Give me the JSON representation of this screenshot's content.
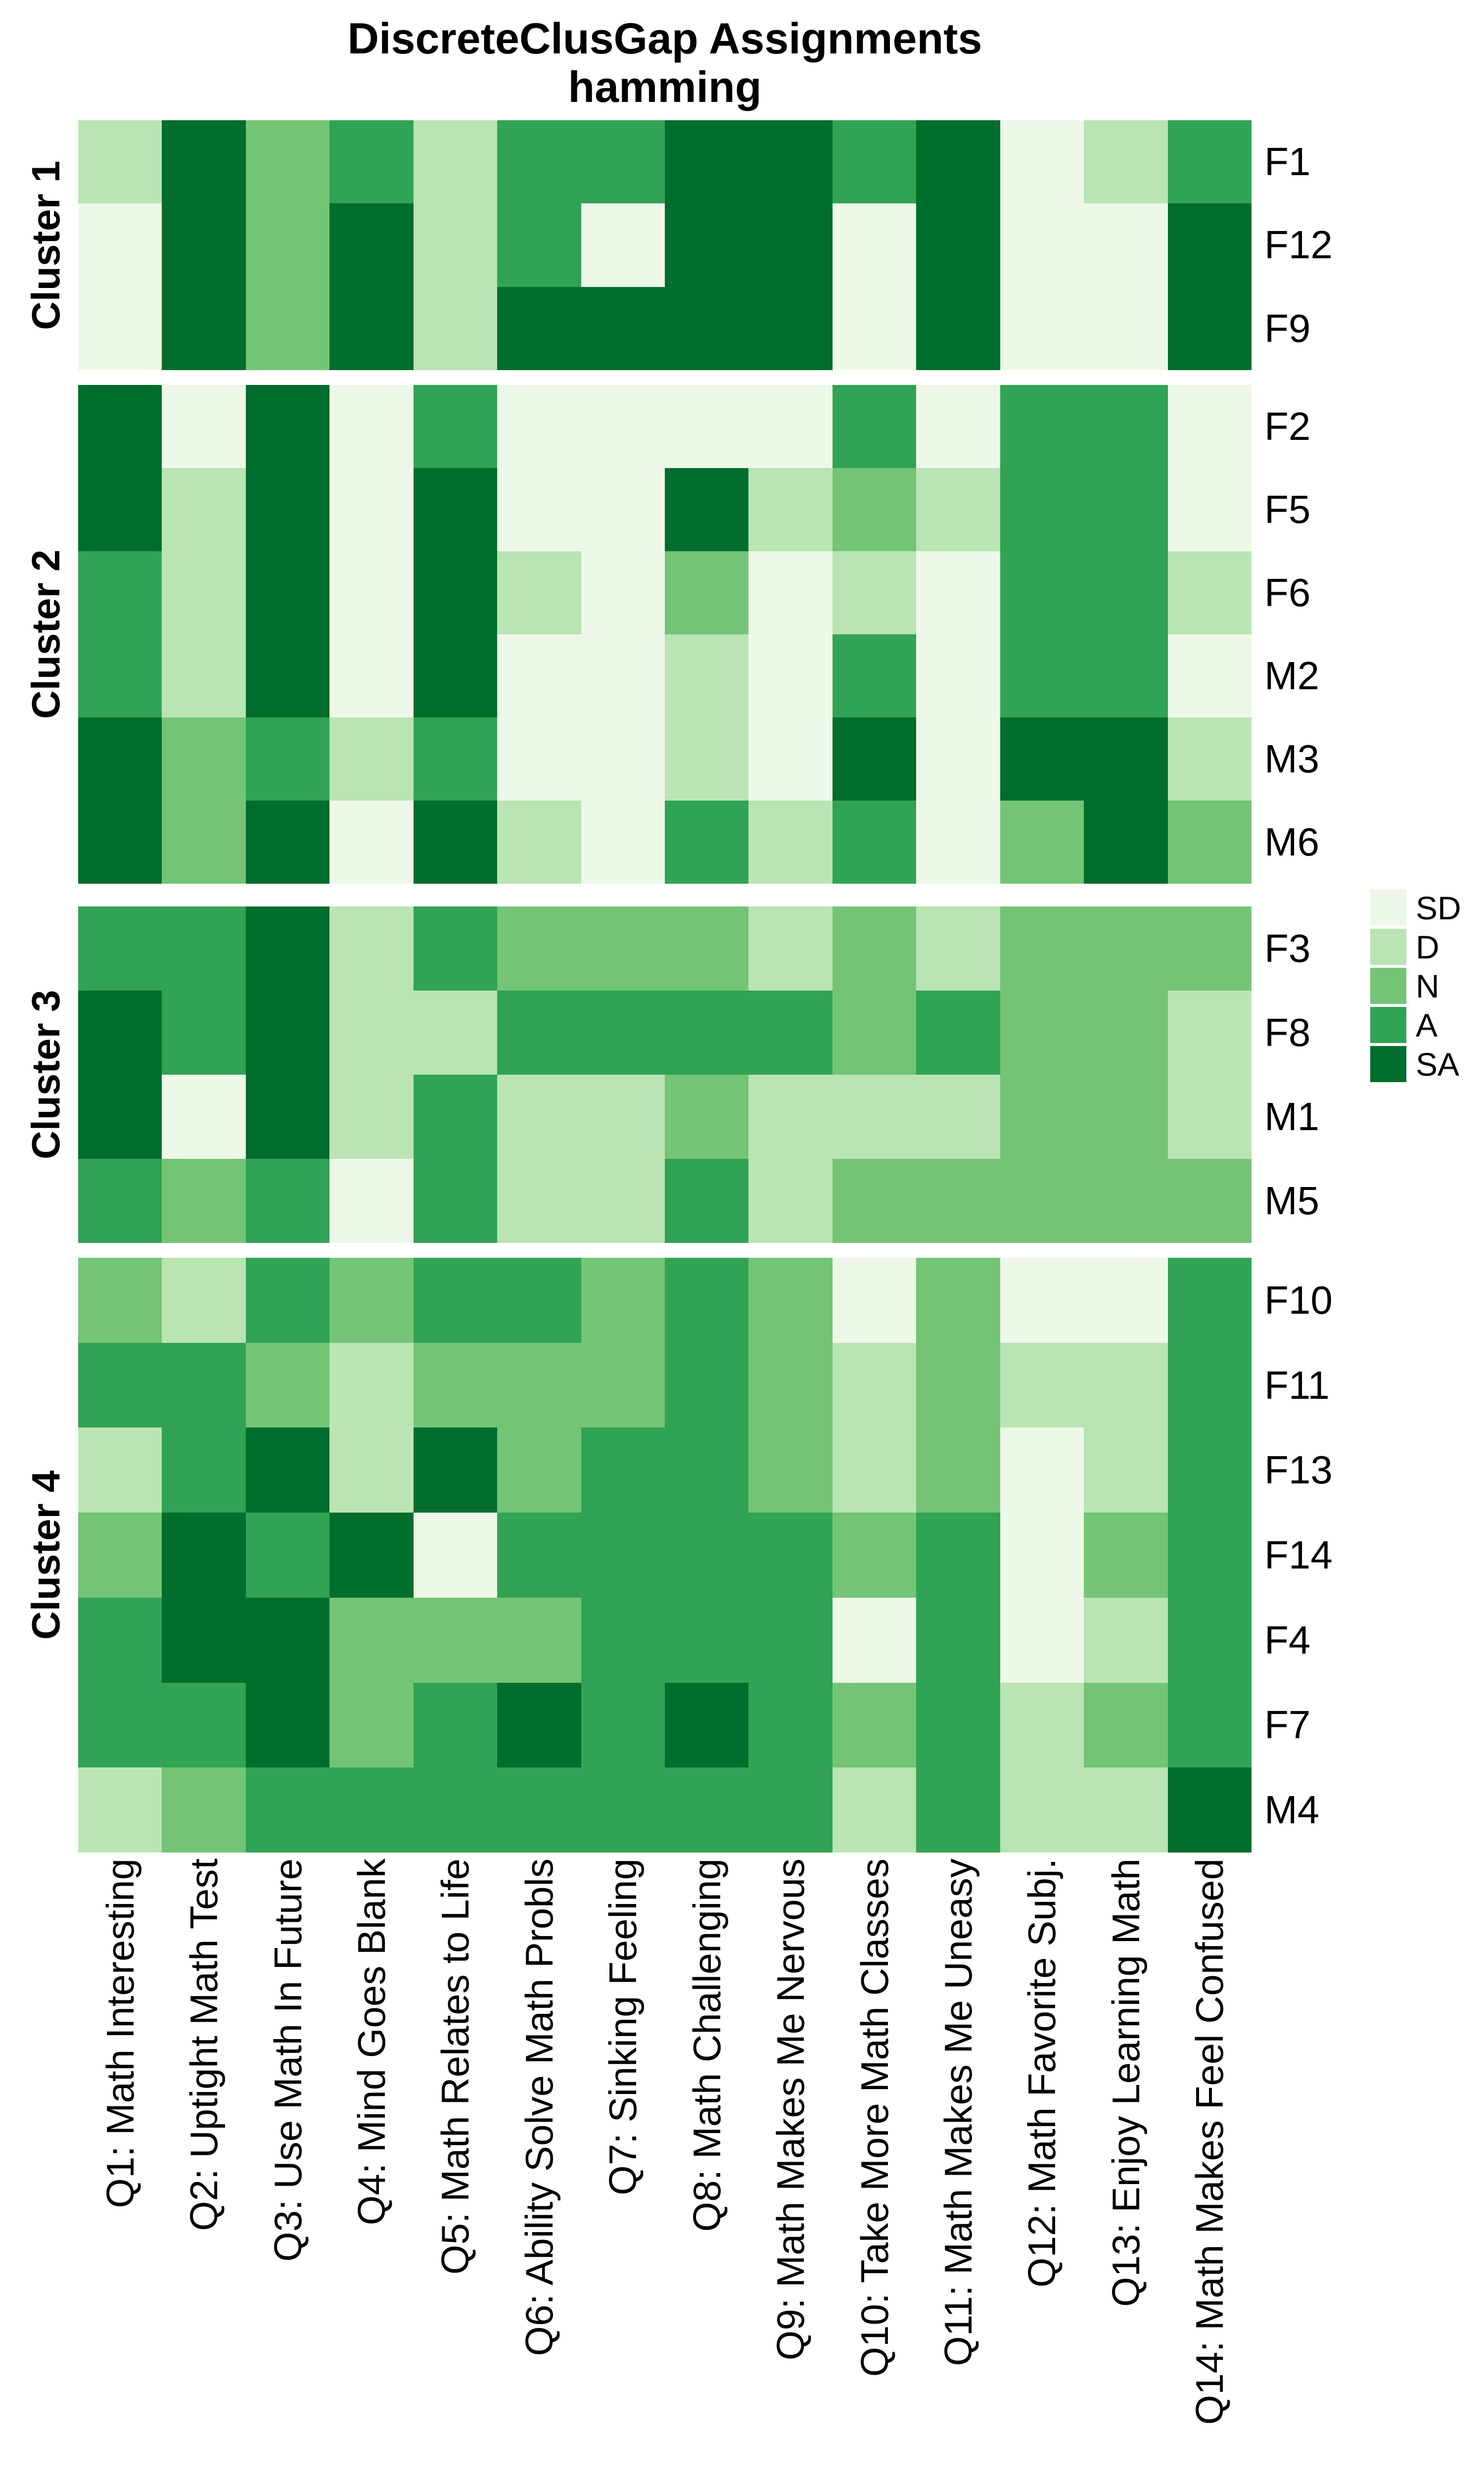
{
  "title": "DiscreteClusGap Assignments",
  "subtitle": "hamming",
  "chart_data": {
    "type": "heatmap",
    "title": "DiscreteClusGap Assignments",
    "subtitle": "hamming",
    "distance_metric": "hamming",
    "value_levels": [
      "SD",
      "D",
      "N",
      "A",
      "SA"
    ],
    "colors": {
      "SD": "#edf8e9",
      "D": "#bae4b3",
      "N": "#74c476",
      "A": "#31a354",
      "SA": "#006d2c"
    },
    "legend": {
      "position": "right",
      "labels": [
        "SD",
        "D",
        "N",
        "A",
        "SA"
      ]
    },
    "columns": [
      "Q1: Math Interesting",
      "Q2: Uptight Math Test",
      "Q3: Use Math In Future",
      "Q4: Mind Goes Blank",
      "Q5: Math Relates to Life",
      "Q6: Ability Solve Math Probls",
      "Q7: Sinking Feeling",
      "Q8: Math Challenging",
      "Q9: Math Makes Me Nervous",
      "Q10: Take More Math Classes",
      "Q11: Math Makes Me Uneasy",
      "Q12: Math Favorite Subj.",
      "Q13: Enjoy Learning Math",
      "Q14: Math Makes Feel Confused"
    ],
    "clusters": [
      {
        "label": "Cluster 1",
        "rows": [
          {
            "name": "F1",
            "values": [
              "D",
              "SA",
              "N",
              "A",
              "D",
              "A",
              "A",
              "SA",
              "SA",
              "A",
              "SA",
              "SD",
              "D",
              "A"
            ]
          },
          {
            "name": "F12",
            "values": [
              "SD",
              "SA",
              "N",
              "SA",
              "D",
              "A",
              "SD",
              "SA",
              "SA",
              "SD",
              "SA",
              "SD",
              "SD",
              "SA"
            ]
          },
          {
            "name": "F9",
            "values": [
              "SD",
              "SA",
              "N",
              "SA",
              "D",
              "SA",
              "SA",
              "SA",
              "SA",
              "SD",
              "SA",
              "SD",
              "SD",
              "SA"
            ]
          }
        ]
      },
      {
        "label": "Cluster 2",
        "rows": [
          {
            "name": "F2",
            "values": [
              "SA",
              "SD",
              "SA",
              "SD",
              "A",
              "SD",
              "SD",
              "SD",
              "SD",
              "A",
              "SD",
              "A",
              "A",
              "SD"
            ]
          },
          {
            "name": "F5",
            "values": [
              "SA",
              "D",
              "SA",
              "SD",
              "SA",
              "SD",
              "SD",
              "SA",
              "D",
              "N",
              "D",
              "A",
              "A",
              "SD"
            ]
          },
          {
            "name": "F6",
            "values": [
              "A",
              "D",
              "SA",
              "SD",
              "SA",
              "D",
              "SD",
              "N",
              "SD",
              "D",
              "SD",
              "A",
              "A",
              "D"
            ]
          },
          {
            "name": "M2",
            "values": [
              "A",
              "D",
              "SA",
              "SD",
              "SA",
              "SD",
              "SD",
              "D",
              "SD",
              "A",
              "SD",
              "A",
              "A",
              "SD"
            ]
          },
          {
            "name": "M3",
            "values": [
              "SA",
              "N",
              "A",
              "D",
              "A",
              "SD",
              "SD",
              "D",
              "SD",
              "SA",
              "SD",
              "SA",
              "SA",
              "D"
            ]
          },
          {
            "name": "M6",
            "values": [
              "SA",
              "N",
              "SA",
              "SD",
              "SA",
              "D",
              "SD",
              "A",
              "D",
              "A",
              "SD",
              "N",
              "SA",
              "N"
            ]
          }
        ]
      },
      {
        "label": "Cluster 3",
        "rows": [
          {
            "name": "F3",
            "values": [
              "A",
              "A",
              "SA",
              "D",
              "A",
              "N",
              "N",
              "N",
              "D",
              "N",
              "D",
              "N",
              "N",
              "N"
            ]
          },
          {
            "name": "F8",
            "values": [
              "SA",
              "A",
              "SA",
              "D",
              "D",
              "A",
              "A",
              "A",
              "A",
              "N",
              "A",
              "N",
              "N",
              "D"
            ]
          },
          {
            "name": "M1",
            "values": [
              "SA",
              "SD",
              "SA",
              "D",
              "A",
              "D",
              "D",
              "N",
              "D",
              "D",
              "D",
              "N",
              "N",
              "D"
            ]
          },
          {
            "name": "M5",
            "values": [
              "A",
              "N",
              "A",
              "SD",
              "A",
              "D",
              "D",
              "A",
              "D",
              "N",
              "N",
              "N",
              "N",
              "N"
            ]
          }
        ]
      },
      {
        "label": "Cluster 4",
        "rows": [
          {
            "name": "F10",
            "values": [
              "N",
              "D",
              "A",
              "N",
              "A",
              "A",
              "N",
              "A",
              "N",
              "SD",
              "N",
              "SD",
              "SD",
              "A"
            ]
          },
          {
            "name": "F11",
            "values": [
              "A",
              "A",
              "N",
              "D",
              "N",
              "N",
              "N",
              "A",
              "N",
              "D",
              "N",
              "D",
              "D",
              "A"
            ]
          },
          {
            "name": "F13",
            "values": [
              "D",
              "A",
              "SA",
              "D",
              "SA",
              "N",
              "A",
              "A",
              "N",
              "D",
              "N",
              "SD",
              "D",
              "A"
            ]
          },
          {
            "name": "F14",
            "values": [
              "N",
              "SA",
              "A",
              "SA",
              "SD",
              "A",
              "A",
              "A",
              "A",
              "N",
              "A",
              "SD",
              "N",
              "A"
            ]
          },
          {
            "name": "F4",
            "values": [
              "A",
              "SA",
              "SA",
              "N",
              "N",
              "N",
              "A",
              "A",
              "A",
              "SD",
              "A",
              "SD",
              "D",
              "A"
            ]
          },
          {
            "name": "F7",
            "values": [
              "A",
              "A",
              "SA",
              "N",
              "A",
              "SA",
              "A",
              "SA",
              "A",
              "N",
              "A",
              "D",
              "N",
              "A"
            ]
          },
          {
            "name": "M4",
            "values": [
              "D",
              "N",
              "A",
              "A",
              "A",
              "A",
              "A",
              "A",
              "A",
              "D",
              "A",
              "D",
              "D",
              "SA"
            ]
          }
        ]
      }
    ]
  }
}
